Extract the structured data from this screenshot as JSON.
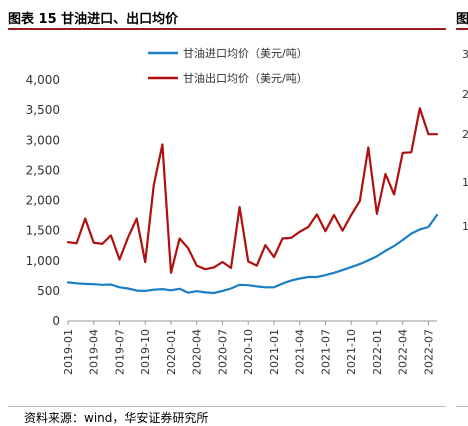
{
  "header": {
    "title": "图表 15 甘油进口、出口均价",
    "next_title": "图"
  },
  "source": "资料来源：wind，华安证券研究所",
  "neighbor_axis": [
    "3",
    "2",
    "2",
    "1",
    "1"
  ],
  "chart_data": {
    "type": "line",
    "title": "",
    "xlabel": "",
    "ylabel": "",
    "ylim": [
      0,
      4000
    ],
    "yticks": [
      "0",
      "500",
      "1,000",
      "1,500",
      "2,000",
      "2,500",
      "3,000",
      "3,500",
      "4,000"
    ],
    "xticks": [
      "2019-01",
      "2019-04",
      "2019-07",
      "2019-10",
      "2020-01",
      "2020-04",
      "2020-07",
      "2020-10",
      "2021-01",
      "2021-04",
      "2021-07",
      "2021-10",
      "2022-01",
      "2022-04",
      "2022-07"
    ],
    "x": [
      "2019-01",
      "2019-02",
      "2019-03",
      "2019-04",
      "2019-05",
      "2019-06",
      "2019-07",
      "2019-08",
      "2019-09",
      "2019-10",
      "2019-11",
      "2019-12",
      "2020-01",
      "2020-02",
      "2020-03",
      "2020-04",
      "2020-05",
      "2020-06",
      "2020-07",
      "2020-08",
      "2020-09",
      "2020-10",
      "2020-11",
      "2020-12",
      "2021-01",
      "2021-02",
      "2021-03",
      "2021-04",
      "2021-05",
      "2021-06",
      "2021-07",
      "2021-08",
      "2021-09",
      "2021-10",
      "2021-11",
      "2021-12",
      "2022-01",
      "2022-02",
      "2022-03",
      "2022-04",
      "2022-05",
      "2022-06",
      "2022-07",
      "2022-08"
    ],
    "legend_position": "top-center",
    "grid": false,
    "series": [
      {
        "name": "甘油进口均价（美元/吨）",
        "color": "#1a7fc4",
        "values": [
          640,
          625,
          615,
          610,
          600,
          605,
          560,
          540,
          505,
          500,
          520,
          530,
          510,
          535,
          470,
          495,
          475,
          465,
          500,
          540,
          600,
          595,
          575,
          560,
          560,
          620,
          670,
          705,
          730,
          730,
          760,
          800,
          845,
          895,
          945,
          1005,
          1075,
          1165,
          1245,
          1345,
          1450,
          1520,
          1560,
          1760
        ]
      },
      {
        "name": "甘油出口均价（美元/吨）",
        "color": "#b01010",
        "values": [
          1310,
          1290,
          1700,
          1300,
          1280,
          1420,
          1020,
          1390,
          1700,
          980,
          2260,
          2930,
          800,
          1370,
          1210,
          920,
          860,
          890,
          980,
          880,
          1890,
          990,
          920,
          1260,
          1060,
          1370,
          1380,
          1480,
          1560,
          1770,
          1490,
          1760,
          1500,
          1760,
          1990,
          2880,
          1780,
          2440,
          2100,
          2790,
          2800,
          3530,
          3100,
          3100
        ]
      }
    ]
  }
}
